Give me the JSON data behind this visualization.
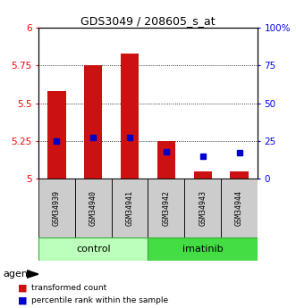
{
  "title": "GDS3049 / 208605_s_at",
  "samples": [
    "GSM34939",
    "GSM34940",
    "GSM34941",
    "GSM34942",
    "GSM34943",
    "GSM34944"
  ],
  "red_values": [
    5.58,
    5.75,
    5.83,
    5.25,
    5.05,
    5.05
  ],
  "blue_values_pct": [
    25,
    27,
    27,
    18,
    15,
    17
  ],
  "y_min": 5.0,
  "y_max": 6.0,
  "y_ticks": [
    5,
    5.25,
    5.5,
    5.75,
    6
  ],
  "y2_ticks": [
    0,
    25,
    50,
    75,
    100
  ],
  "y2_labels": [
    "0",
    "25",
    "50",
    "75",
    "100%"
  ],
  "control_color": "#bbffbb",
  "imatinib_color": "#44dd44",
  "sample_bg_color": "#cccccc",
  "bar_color": "#cc1111",
  "dot_color": "#0000cc",
  "legend_red": "transformed count",
  "legend_blue": "percentile rank within the sample",
  "agent_label": "agent",
  "group_control_label": "control",
  "group_imatinib_label": "imatinib",
  "n_control": 3,
  "n_imatinib": 3
}
